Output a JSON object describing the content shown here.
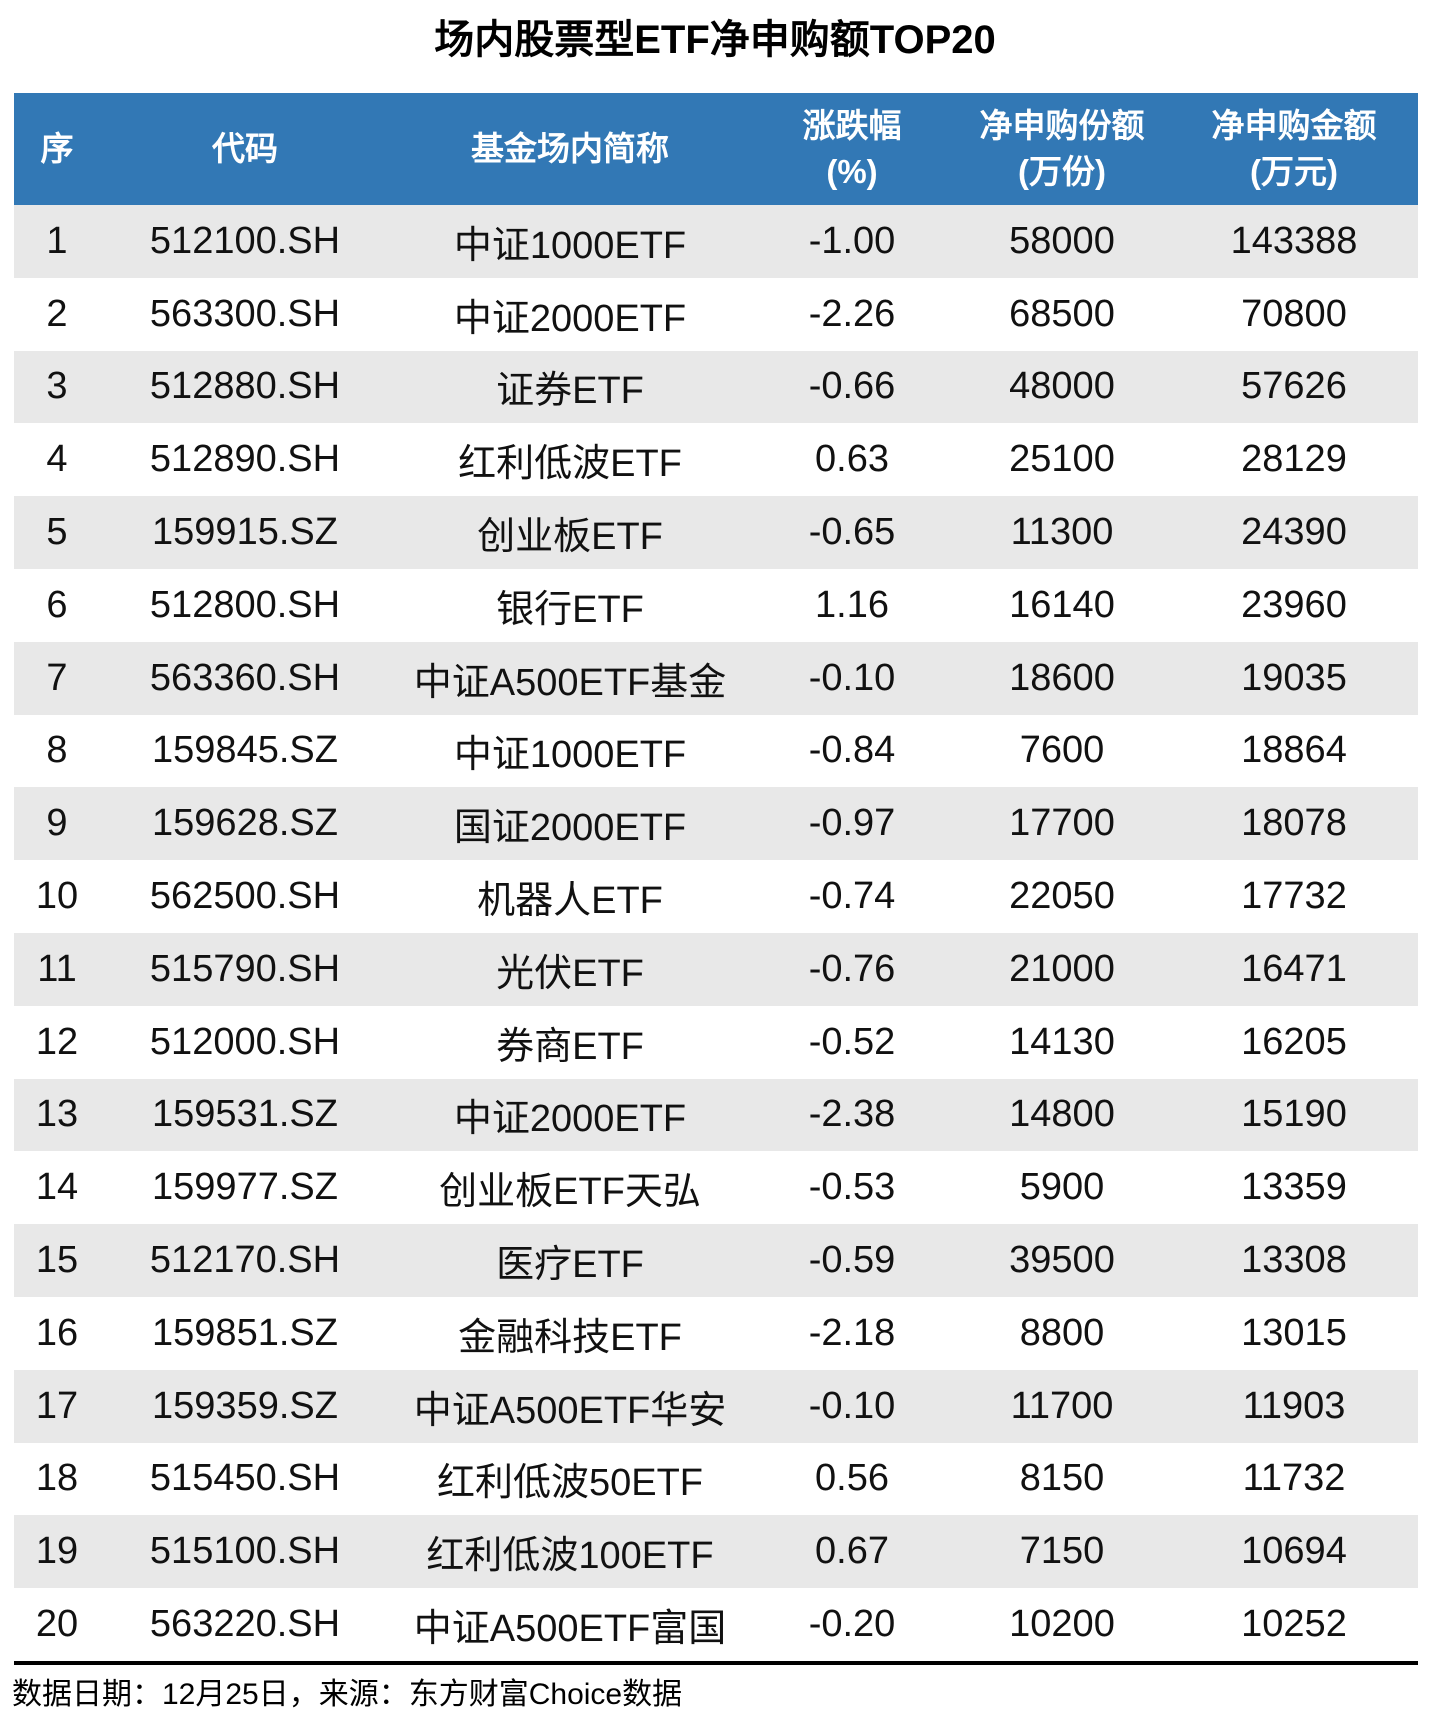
{
  "title": "场内股票型ETF净申购额TOP20",
  "chart_data": {
    "type": "table",
    "title": "场内股票型ETF净申购额TOP20",
    "columns": [
      {
        "label": "序",
        "unit": ""
      },
      {
        "label": "代码",
        "unit": ""
      },
      {
        "label": "基金场内简称",
        "unit": ""
      },
      {
        "label": "涨跌幅",
        "unit": "(%)"
      },
      {
        "label": "净申购份额",
        "unit": "(万份)"
      },
      {
        "label": "净申购金额",
        "unit": "(万元)"
      }
    ],
    "rows": [
      [
        "1",
        "512100.SH",
        "中证1000ETF",
        "-1.00",
        "58000",
        "143388"
      ],
      [
        "2",
        "563300.SH",
        "中证2000ETF",
        "-2.26",
        "68500",
        "70800"
      ],
      [
        "3",
        "512880.SH",
        "证券ETF",
        "-0.66",
        "48000",
        "57626"
      ],
      [
        "4",
        "512890.SH",
        "红利低波ETF",
        "0.63",
        "25100",
        "28129"
      ],
      [
        "5",
        "159915.SZ",
        "创业板ETF",
        "-0.65",
        "11300",
        "24390"
      ],
      [
        "6",
        "512800.SH",
        "银行ETF",
        "1.16",
        "16140",
        "23960"
      ],
      [
        "7",
        "563360.SH",
        "中证A500ETF基金",
        "-0.10",
        "18600",
        "19035"
      ],
      [
        "8",
        "159845.SZ",
        "中证1000ETF",
        "-0.84",
        "7600",
        "18864"
      ],
      [
        "9",
        "159628.SZ",
        "国证2000ETF",
        "-0.97",
        "17700",
        "18078"
      ],
      [
        "10",
        "562500.SH",
        "机器人ETF",
        "-0.74",
        "22050",
        "17732"
      ],
      [
        "11",
        "515790.SH",
        "光伏ETF",
        "-0.76",
        "21000",
        "16471"
      ],
      [
        "12",
        "512000.SH",
        "券商ETF",
        "-0.52",
        "14130",
        "16205"
      ],
      [
        "13",
        "159531.SZ",
        "中证2000ETF",
        "-2.38",
        "14800",
        "15190"
      ],
      [
        "14",
        "159977.SZ",
        "创业板ETF天弘",
        "-0.53",
        "5900",
        "13359"
      ],
      [
        "15",
        "512170.SH",
        "医疗ETF",
        "-0.59",
        "39500",
        "13308"
      ],
      [
        "16",
        "159851.SZ",
        "金融科技ETF",
        "-2.18",
        "8800",
        "13015"
      ],
      [
        "17",
        "159359.SZ",
        "中证A500ETF华安",
        "-0.10",
        "11700",
        "11903"
      ],
      [
        "18",
        "515450.SH",
        "红利低波50ETF",
        "0.56",
        "8150",
        "11732"
      ],
      [
        "19",
        "515100.SH",
        "红利低波100ETF",
        "0.67",
        "7150",
        "10694"
      ],
      [
        "20",
        "563220.SH",
        "中证A500ETF富国",
        "-0.20",
        "10200",
        "10252"
      ]
    ]
  },
  "footer": {
    "note": "数据日期：12月25日，来源：东方财富Choice数据"
  },
  "colors": {
    "header_bg": "#3278B5",
    "header_text": "#FFFFFF",
    "stripe": "#E8E8E8",
    "divider": "#000000"
  }
}
